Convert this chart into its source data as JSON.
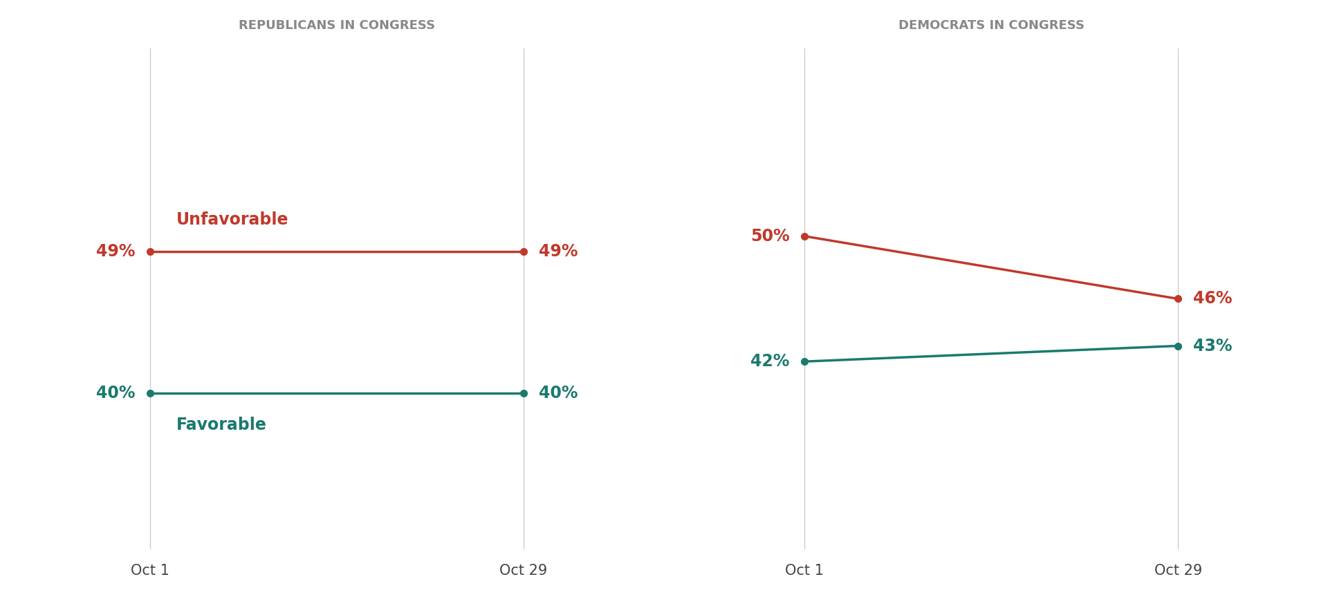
{
  "left_title": "REPUBLICANS IN CONGRESS",
  "right_title": "DEMOCRATS IN CONGRESS",
  "unfavorable_color": "#C0392B",
  "favorable_color": "#1A7A6E",
  "title_color": "#888888",
  "axis_line_color": "#cccccc",
  "x_tick_color": "#444444",
  "background_color": "#ffffff",
  "left": {
    "unfavorable": [
      49,
      49
    ],
    "favorable": [
      40,
      40
    ],
    "unfavorable_label": "Unfavorable",
    "favorable_label": "Favorable",
    "x_labels": [
      "Oct 1",
      "Oct 29"
    ]
  },
  "right": {
    "unfavorable": [
      50,
      46
    ],
    "favorable": [
      42,
      43
    ],
    "x_labels": [
      "Oct 1",
      "Oct 29"
    ]
  },
  "line_width": 2.5,
  "marker_size": 7,
  "title_fontsize": 13,
  "label_fontsize": 17,
  "value_fontsize": 17,
  "xtick_fontsize": 15
}
